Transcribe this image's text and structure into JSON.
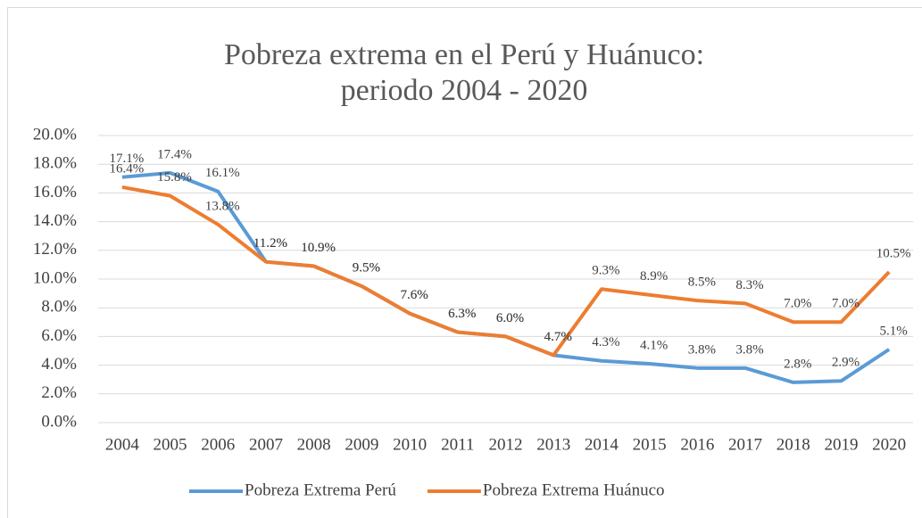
{
  "chart_data": {
    "type": "line",
    "title": "Pobreza extrema en el Perú y Huánuco: periodo 2004 - 2020",
    "categories": [
      "2004",
      "2005",
      "2006",
      "2007",
      "2008",
      "2009",
      "2010",
      "2011",
      "2012",
      "2013",
      "2014",
      "2015",
      "2016",
      "2017",
      "2018",
      "2019",
      "2020"
    ],
    "series": [
      {
        "name": "Pobreza Extrema Perú",
        "color": "#5b9bd5",
        "values": [
          17.1,
          17.4,
          16.1,
          11.2,
          10.9,
          9.5,
          7.6,
          6.3,
          6.0,
          4.7,
          4.3,
          4.1,
          3.8,
          3.8,
          2.8,
          2.9,
          5.1
        ],
        "value_labels": [
          "17.1%",
          "17.4%",
          "16.1%",
          "11.2%",
          "10.9%",
          "9.5%",
          "7.6%",
          "6.3%",
          "6.0%",
          "4.7%",
          "4.3%",
          "4.1%",
          "3.8%",
          "3.8%",
          "2.8%",
          "2.9%",
          "5.1%"
        ]
      },
      {
        "name": "Pobreza Extrema Huánuco",
        "color": "#ed7d31",
        "values": [
          16.4,
          15.8,
          13.8,
          11.2,
          10.9,
          9.5,
          7.6,
          6.3,
          6.0,
          4.7,
          9.3,
          8.9,
          8.5,
          8.3,
          7.0,
          7.0,
          10.5
        ],
        "value_labels": [
          "16.4%",
          "15.8%",
          "13.8%",
          "11.2%",
          "10.9%",
          "9.5%",
          "7.6%",
          "6.3%",
          "6.0%",
          "4.7%",
          "9.3%",
          "8.9%",
          "8.5%",
          "8.3%",
          "7.0%",
          "7.0%",
          "10.5%"
        ]
      }
    ],
    "ylim": [
      0,
      20
    ],
    "yticks": [
      {
        "value": 0,
        "label": "0.0%"
      },
      {
        "value": 2,
        "label": "2.0%"
      },
      {
        "value": 4,
        "label": "4.0%"
      },
      {
        "value": 6,
        "label": "6.0%"
      },
      {
        "value": 8,
        "label": "8.0%"
      },
      {
        "value": 10,
        "label": "10.0%"
      },
      {
        "value": 12,
        "label": "12.0%"
      },
      {
        "value": 14,
        "label": "14.0%"
      },
      {
        "value": 16,
        "label": "16.0%"
      },
      {
        "value": 18,
        "label": "18.0%"
      },
      {
        "value": 20,
        "label": "20.0%"
      }
    ],
    "legend": "bottom"
  }
}
